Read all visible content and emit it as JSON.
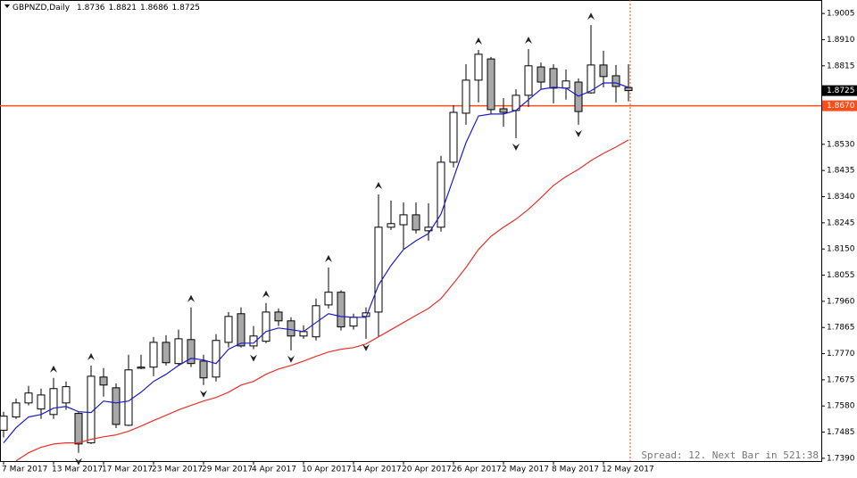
{
  "chart_data": {
    "type": "candlestick",
    "symbol": "GBPNZD,Daily",
    "ohlc_header": [
      1.8736,
      1.8821,
      1.8686,
      1.8725
    ],
    "categories": [
      "7 Mar 2017",
      null,
      null,
      null,
      "13 Mar 2017",
      null,
      null,
      null,
      "17 Mar 2017",
      null,
      null,
      null,
      "23 Mar 2017",
      null,
      null,
      null,
      "29 Mar 2017",
      null,
      null,
      null,
      "4 Apr 2017",
      null,
      null,
      null,
      "10 Apr 2017",
      null,
      null,
      null,
      "14 Apr 2017",
      null,
      null,
      null,
      "20 Apr 2017",
      null,
      null,
      null,
      "26 Apr 2017",
      null,
      null,
      null,
      "2 May 2017",
      null,
      null,
      null,
      "8 May 2017",
      null,
      null,
      null,
      "12 May 2017",
      null,
      null
    ],
    "open": [
      1.7492,
      1.754,
      1.7591,
      1.7569,
      1.7549,
      1.7591,
      1.7553,
      1.7446,
      1.7685,
      1.7646,
      1.751,
      1.7717,
      1.7721,
      1.7811,
      1.7734,
      1.7821,
      1.7743,
      1.7685,
      1.7811,
      1.7915,
      1.7798,
      1.7815,
      1.7921,
      1.7889,
      1.7834,
      1.7831,
      1.7947,
      1.7993,
      1.787,
      1.7905,
      1.7921,
      1.8229,
      1.8238,
      1.8274,
      1.8216,
      1.8229,
      1.8465,
      1.8643,
      1.8763,
      1.884,
      1.8659,
      1.8653,
      1.8708,
      1.8811,
      1.8805,
      1.8734,
      1.8756,
      1.8717,
      1.8818,
      1.8779,
      1.8736
    ],
    "high": [
      1.7559,
      1.7607,
      1.7653,
      1.7643,
      1.7682,
      1.7669,
      1.7559,
      1.7727,
      1.7718,
      1.7662,
      1.7766,
      1.7766,
      1.7831,
      1.7837,
      1.7857,
      1.7938,
      1.7766,
      1.7841,
      1.7921,
      1.7938,
      1.787,
      1.7954,
      1.7934,
      1.7902,
      1.7873,
      1.797,
      1.8083,
      1.8,
      1.7915,
      1.7938,
      1.8348,
      1.8326,
      1.8319,
      1.8319,
      1.8316,
      1.8488,
      1.8672,
      1.8821,
      1.8873,
      1.8847,
      1.8698,
      1.873,
      1.8876,
      1.8827,
      1.8821,
      1.8802,
      1.8769,
      1.8963,
      1.887,
      1.8818,
      1.8821
    ],
    "low": [
      1.7466,
      1.7533,
      1.7582,
      1.7533,
      1.7533,
      1.7566,
      1.741,
      1.7442,
      1.7614,
      1.75,
      1.7507,
      1.7714,
      1.7688,
      1.7727,
      1.7727,
      1.7721,
      1.7656,
      1.7669,
      1.7792,
      1.7792,
      1.7786,
      1.7808,
      1.787,
      1.7782,
      1.7824,
      1.7818,
      1.7934,
      1.7854,
      1.7857,
      1.7824,
      1.7831,
      1.8219,
      1.8148,
      1.8206,
      1.818,
      1.8213,
      1.8446,
      1.8601,
      1.8682,
      1.864,
      1.8594,
      1.8552,
      1.8666,
      1.873,
      1.8679,
      1.8692,
      1.8601,
      1.8714,
      1.8737,
      1.8682,
      1.8686
    ],
    "close": [
      1.7543,
      1.7591,
      1.7627,
      1.762,
      1.7643,
      1.765,
      1.7442,
      1.7688,
      1.7656,
      1.7513,
      1.7711,
      1.7721,
      1.7811,
      1.7737,
      1.7824,
      1.7734,
      1.7682,
      1.7818,
      1.7905,
      1.7798,
      1.7834,
      1.7921,
      1.7889,
      1.7834,
      1.785,
      1.7944,
      1.7993,
      1.7867,
      1.7902,
      1.7918,
      1.8229,
      1.8242,
      1.8274,
      1.8219,
      1.8229,
      1.8465,
      1.8646,
      1.8763,
      1.8857,
      1.8656,
      1.8646,
      1.8708,
      1.8815,
      1.8756,
      1.8734,
      1.876,
      1.8649,
      1.8818,
      1.8776,
      1.874,
      1.8725
    ],
    "bull_color": "#ffffff",
    "bear_color": "#a8a8a8",
    "moving_averages": [
      {
        "color": "#1c1cc8",
        "values": [
          1.7446,
          1.7501,
          1.754,
          1.7549,
          1.7572,
          1.7578,
          1.7559,
          1.7556,
          1.7598,
          1.7591,
          1.7598,
          1.763,
          1.7669,
          1.7695,
          1.7727,
          1.7753,
          1.7747,
          1.7734,
          1.7786,
          1.7808,
          1.7808,
          1.785,
          1.7863,
          1.7857,
          1.785,
          1.7883,
          1.7915,
          1.7905,
          1.7902,
          1.7902,
          1.8019,
          1.809,
          1.8148,
          1.818,
          1.8206,
          1.8277,
          1.8407,
          1.8536,
          1.8633,
          1.864,
          1.864,
          1.8653,
          1.8692,
          1.873,
          1.8737,
          1.8734,
          1.8705,
          1.8724,
          1.8753,
          1.8753,
          1.8737
        ]
      },
      {
        "color": "#e8302a",
        "values": [
          null,
          1.7381,
          1.741,
          1.743,
          1.7442,
          1.7446,
          1.7446,
          1.7459,
          1.7468,
          1.7475,
          1.7488,
          1.7507,
          1.7527,
          1.7546,
          1.7566,
          1.7582,
          1.7598,
          1.7611,
          1.763,
          1.7656,
          1.7669,
          1.7695,
          1.7714,
          1.7727,
          1.7743,
          1.776,
          1.7776,
          1.7786,
          1.7792,
          1.7805,
          1.7831,
          1.7857,
          1.7883,
          1.7909,
          1.7934,
          1.797,
          1.8025,
          1.8083,
          1.8148,
          1.8196,
          1.8229,
          1.8258,
          1.8294,
          1.8336,
          1.8381,
          1.8413,
          1.8439,
          1.8471,
          1.8497,
          1.852,
          1.8546
        ]
      }
    ],
    "fractals_up": [
      null,
      null,
      null,
      null,
      1.7682,
      null,
      null,
      1.7727,
      null,
      null,
      null,
      null,
      null,
      null,
      null,
      1.7938,
      null,
      null,
      null,
      null,
      null,
      1.7954,
      null,
      null,
      null,
      null,
      1.8083,
      null,
      null,
      null,
      1.8348,
      null,
      null,
      null,
      null,
      null,
      null,
      null,
      1.8873,
      null,
      null,
      null,
      1.8876,
      null,
      null,
      null,
      null,
      1.8963,
      null,
      null,
      null
    ],
    "fractals_down": [
      null,
      null,
      null,
      null,
      null,
      null,
      1.741,
      null,
      null,
      null,
      null,
      null,
      null,
      null,
      null,
      null,
      1.7656,
      null,
      null,
      null,
      1.7786,
      null,
      null,
      1.7782,
      null,
      null,
      null,
      null,
      null,
      1.7824,
      null,
      null,
      null,
      null,
      null,
      null,
      null,
      null,
      null,
      null,
      null,
      1.8552,
      null,
      null,
      null,
      null,
      1.8601,
      null,
      null,
      null,
      null
    ],
    "ylim": [
      1.738,
      1.9054
    ],
    "yticks": [
      {
        "value": 1.739,
        "label": "1.7390"
      },
      1.7485,
      {
        "value": 1.758,
        "label": "1.7580"
      },
      1.7675,
      {
        "value": 1.777,
        "label": "1.7770"
      },
      1.7865,
      {
        "value": 1.796,
        "label": "1.7960"
      },
      1.8055,
      {
        "value": 1.815,
        "label": "1.8150"
      },
      1.8245,
      {
        "value": 1.834,
        "label": "1.8340"
      },
      1.8435,
      {
        "value": 1.853,
        "label": "1.8530"
      },
      1.8815,
      {
        "value": 1.891,
        "label": "1.8910"
      },
      1.9005
    ],
    "current_price": 1.8725,
    "level_line": {
      "value": 1.867,
      "label": "1.8670",
      "color": "#ff4d1a"
    },
    "status_text": "Spread: 12. Next Bar in 521:38"
  }
}
